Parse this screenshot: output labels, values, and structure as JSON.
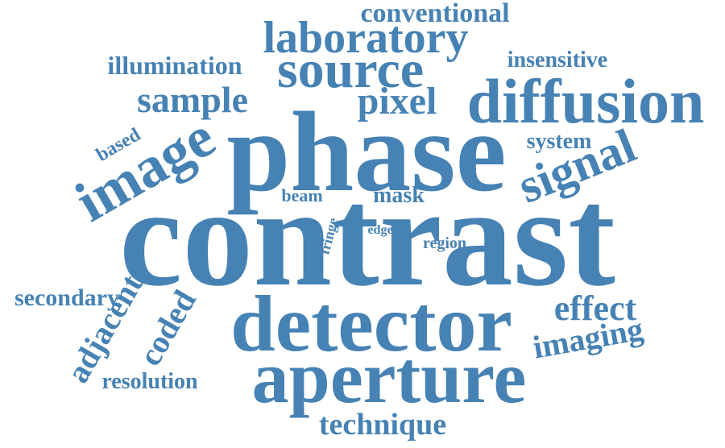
{
  "colors": {
    "word": "#4682b4",
    "background": "#ffffff"
  },
  "words": {
    "contrast": "contrast",
    "phase": "phase",
    "detector": "detector",
    "aperture": "aperture",
    "diffusion": "diffusion",
    "source": "source",
    "laboratory": "laboratory",
    "image": "image",
    "signal": "signal",
    "pixel": "pixel",
    "sample": "sample",
    "conventional": "conventional",
    "illumination": "illumination",
    "insensitive": "insensitive",
    "system": "system",
    "based": "based",
    "beam": "beam",
    "mask": "mask",
    "fringe": "fringe",
    "edge": "edge",
    "region": "region",
    "secondary": "secondary",
    "adjacent": "adjacent",
    "coded": "coded",
    "effect": "effect",
    "imaging": "imaging",
    "resolution": "resolution",
    "technique": "technique"
  }
}
